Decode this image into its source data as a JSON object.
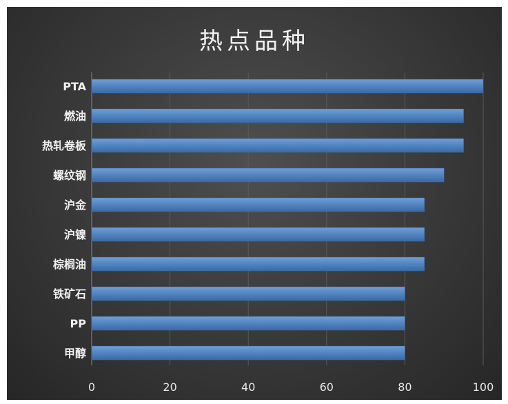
{
  "chart_data": {
    "type": "bar",
    "orientation": "horizontal",
    "title": "热点品种",
    "categories": [
      "PTA",
      "燃油",
      "热轧卷板",
      "螺纹钢",
      "沪金",
      "沪镍",
      "棕榈油",
      "铁矿石",
      "PP",
      "甲醇"
    ],
    "values": [
      100,
      95,
      95,
      90,
      85,
      85,
      85,
      80,
      80,
      80
    ],
    "xlim": [
      0,
      100
    ],
    "xticks": [
      "0",
      "20",
      "40",
      "60",
      "80",
      "100"
    ],
    "grid": true,
    "legend": "none",
    "bar_color": "#4f81bd",
    "background_color": "#3a3a3a"
  }
}
